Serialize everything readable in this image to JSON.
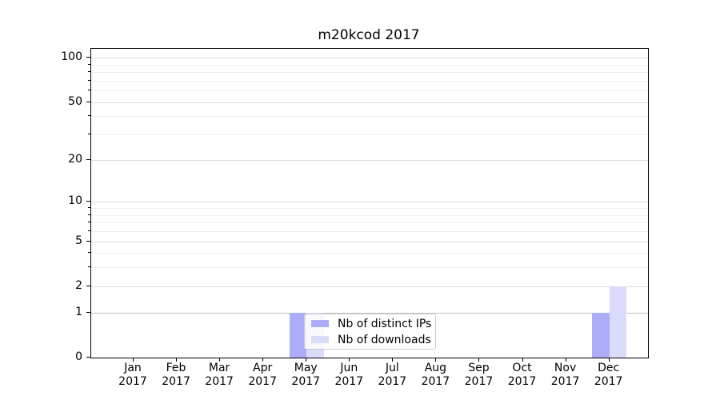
{
  "chart_data": {
    "type": "bar",
    "title": "m20kcod 2017",
    "x_tick_months": [
      "Jan",
      "Feb",
      "Mar",
      "Apr",
      "May",
      "Jun",
      "Jul",
      "Aug",
      "Sep",
      "Oct",
      "Nov",
      "Dec"
    ],
    "x_tick_year": "2017",
    "series": [
      {
        "name": "Nb of distinct IPs",
        "color": "#acacf9",
        "values": [
          0,
          0,
          0,
          0,
          1,
          0,
          0,
          0,
          0,
          0,
          0,
          1
        ]
      },
      {
        "name": "Nb of downloads",
        "color": "#dbdbfb",
        "values": [
          0,
          0,
          0,
          0,
          1,
          0,
          0,
          0,
          0,
          0,
          0,
          2
        ]
      }
    ],
    "y_axis": {
      "scale": "log10(1+v)",
      "major_ticks": [
        0,
        1,
        2,
        5,
        10,
        20,
        50,
        100
      ],
      "minor_ticks": [
        3,
        4,
        6,
        7,
        8,
        9,
        30,
        40,
        60,
        70,
        80,
        90
      ],
      "axis_top_value": 115,
      "grid": "on",
      "emphasized_gridline_value": 1
    },
    "legend_position": "inside lower-left-of-center"
  },
  "colors": {
    "grid_major": "#dbdbdb",
    "grid_minor": "#eeeeee",
    "grid_emphasis": "#c2c2c2",
    "spine": "#000000",
    "legend_border": "#cbcbcb",
    "background": "#ffffff"
  }
}
